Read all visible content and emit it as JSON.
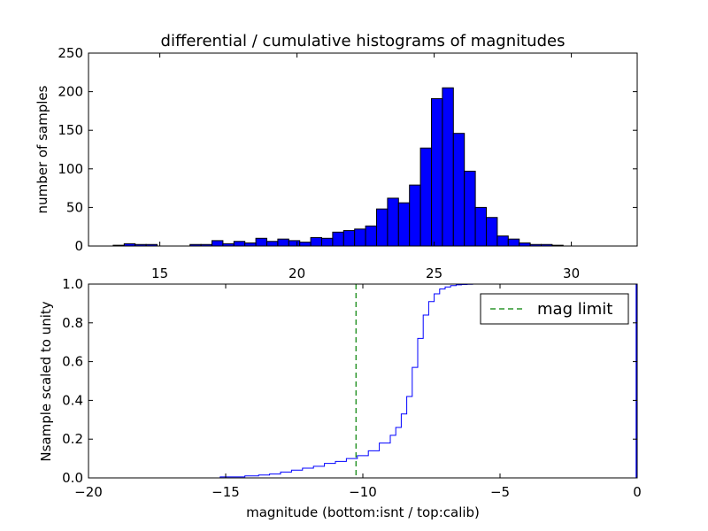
{
  "colors": {
    "bar": "#0000ff",
    "bar_edge": "#000000",
    "cdf": "#0000ff",
    "limit": "#008000"
  },
  "chart_data": [
    {
      "type": "bar",
      "title": "differential / cumulative histograms of magnitudes",
      "ylabel": "number of samples",
      "xlim": [
        12.4,
        32.4
      ],
      "ylim": [
        0,
        250
      ],
      "xticks": [
        15,
        20,
        25,
        30
      ],
      "yticks": [
        0,
        50,
        100,
        150,
        200,
        250
      ],
      "xtick_position": "top",
      "bin_start": 13.3,
      "bin_width": 0.4,
      "values": [
        1,
        3,
        2,
        2,
        0,
        0,
        0,
        2,
        2,
        7,
        3,
        6,
        4,
        10,
        6,
        9,
        7,
        5,
        11,
        10,
        18,
        20,
        22,
        26,
        48,
        62,
        56,
        79,
        127,
        191,
        205,
        146,
        97,
        50,
        37,
        13,
        9,
        4,
        2,
        2,
        1
      ]
    },
    {
      "type": "line",
      "drawstyle": "steps",
      "ylabel": "Nsample scaled to unity",
      "xlabel": "magnitude (bottom:isnt / top:calib)",
      "xlim": [
        -20,
        0
      ],
      "ylim": [
        0,
        1
      ],
      "xticks": [
        -20,
        -15,
        -10,
        -5,
        0
      ],
      "xtick_labels": [
        "−20",
        "−15",
        "−10",
        "−5",
        "0"
      ],
      "yticks": [
        0.0,
        0.2,
        0.4,
        0.6,
        0.8,
        1.0
      ],
      "ytick_labels": [
        "0.0",
        "0.2",
        "0.4",
        "0.6",
        "0.8",
        "1.0"
      ],
      "legend": {
        "label": "mag limit",
        "location": "top-right"
      },
      "mag_limit": -10.25,
      "series": [
        {
          "x": [
            -19.2,
            -15.2,
            -14.3,
            -13.8,
            -13.4,
            -13.0,
            -12.6,
            -12.2,
            -11.8,
            -11.4,
            -11.0,
            -10.6,
            -10.2,
            -9.8,
            -9.4,
            -9.0,
            -8.8,
            -8.6,
            -8.4,
            -8.2,
            -8.0,
            -7.8,
            -7.6,
            -7.4,
            -7.2,
            -7.0,
            -6.8,
            -6.6,
            -6.4,
            -6.2,
            -6.0,
            -5.8
          ],
          "y": [
            0.0,
            0.005,
            0.01,
            0.015,
            0.02,
            0.03,
            0.04,
            0.05,
            0.06,
            0.075,
            0.085,
            0.1,
            0.115,
            0.14,
            0.18,
            0.22,
            0.26,
            0.33,
            0.42,
            0.57,
            0.72,
            0.84,
            0.91,
            0.95,
            0.975,
            0.985,
            0.992,
            0.996,
            0.998,
            0.999,
            1.0,
            1.0
          ]
        }
      ]
    }
  ]
}
